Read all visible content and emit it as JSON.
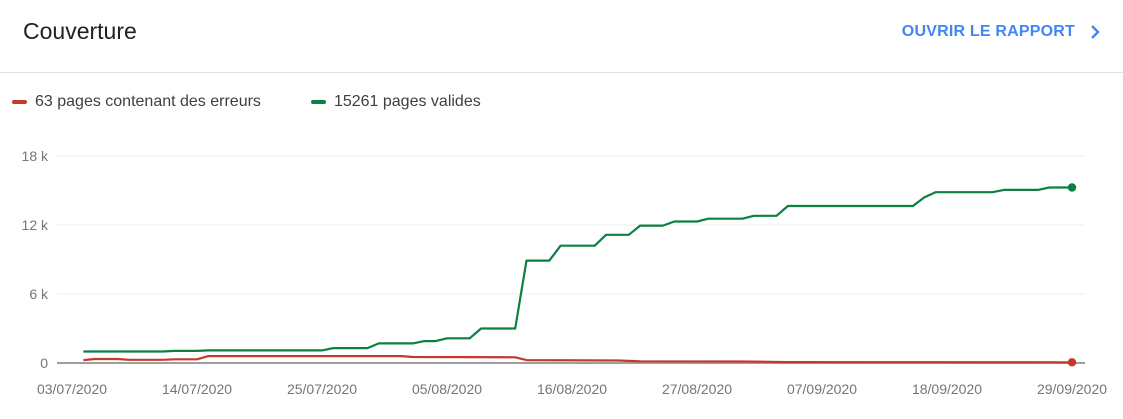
{
  "header": {
    "title": "Couverture",
    "open_report_label": "OUVRIR LE RAPPORT",
    "open_report_icon": "chevron-right-icon"
  },
  "colors": {
    "errors": "#c5392c",
    "valid": "#0b8043",
    "link": "#4285f4"
  },
  "chart_data": {
    "type": "line",
    "title": "",
    "xlabel": "",
    "ylabel": "",
    "xlim": [
      "03/07/2020",
      "29/09/2020"
    ],
    "ylim": [
      0,
      18000
    ],
    "y_ticks": [
      {
        "value": 0,
        "label": "0"
      },
      {
        "value": 6000,
        "label": "6 k"
      },
      {
        "value": 12000,
        "label": "12 k"
      },
      {
        "value": 18000,
        "label": "18 k"
      }
    ],
    "x_ticks": [
      "03/07/2020",
      "14/07/2020",
      "25/07/2020",
      "05/08/2020",
      "16/08/2020",
      "27/08/2020",
      "07/09/2020",
      "18/09/2020",
      "29/09/2020"
    ],
    "grid": true,
    "legend_position": "top-left",
    "series": [
      {
        "name": "63 pages contenant des erreurs",
        "color": "#c5392c",
        "points": [
          [
            "04/07/2020",
            250
          ],
          [
            "05/07/2020",
            350
          ],
          [
            "07/07/2020",
            350
          ],
          [
            "08/07/2020",
            280
          ],
          [
            "11/07/2020",
            280
          ],
          [
            "12/07/2020",
            320
          ],
          [
            "14/07/2020",
            320
          ],
          [
            "15/07/2020",
            600
          ],
          [
            "01/08/2020",
            600
          ],
          [
            "02/08/2020",
            520
          ],
          [
            "11/08/2020",
            500
          ],
          [
            "12/08/2020",
            250
          ],
          [
            "20/08/2020",
            220
          ],
          [
            "22/08/2020",
            150
          ],
          [
            "31/08/2020",
            130
          ],
          [
            "04/09/2020",
            80
          ],
          [
            "29/09/2020",
            63
          ]
        ]
      },
      {
        "name": "15261 pages valides",
        "color": "#0b8043",
        "points": [
          [
            "04/07/2020",
            1000
          ],
          [
            "11/07/2020",
            1000
          ],
          [
            "12/07/2020",
            1050
          ],
          [
            "14/07/2020",
            1050
          ],
          [
            "15/07/2020",
            1100
          ],
          [
            "25/07/2020",
            1100
          ],
          [
            "26/07/2020",
            1300
          ],
          [
            "29/07/2020",
            1300
          ],
          [
            "30/07/2020",
            1700
          ],
          [
            "02/08/2020",
            1700
          ],
          [
            "03/08/2020",
            1900
          ],
          [
            "04/08/2020",
            1900
          ],
          [
            "05/08/2020",
            2150
          ],
          [
            "07/08/2020",
            2150
          ],
          [
            "08/08/2020",
            3000
          ],
          [
            "11/08/2020",
            3000
          ],
          [
            "12/08/2020",
            8900
          ],
          [
            "14/08/2020",
            8900
          ],
          [
            "15/08/2020",
            10200
          ],
          [
            "18/08/2020",
            10200
          ],
          [
            "19/08/2020",
            11150
          ],
          [
            "21/08/2020",
            11150
          ],
          [
            "22/08/2020",
            11950
          ],
          [
            "24/08/2020",
            11950
          ],
          [
            "25/08/2020",
            12300
          ],
          [
            "27/08/2020",
            12300
          ],
          [
            "28/08/2020",
            12550
          ],
          [
            "31/08/2020",
            12550
          ],
          [
            "01/09/2020",
            12800
          ],
          [
            "03/09/2020",
            12800
          ],
          [
            "04/09/2020",
            13650
          ],
          [
            "15/09/2020",
            13650
          ],
          [
            "16/09/2020",
            14400
          ],
          [
            "17/09/2020",
            14850
          ],
          [
            "22/09/2020",
            14850
          ],
          [
            "23/09/2020",
            15050
          ],
          [
            "26/09/2020",
            15050
          ],
          [
            "27/09/2020",
            15261
          ],
          [
            "29/09/2020",
            15261
          ]
        ]
      }
    ]
  }
}
